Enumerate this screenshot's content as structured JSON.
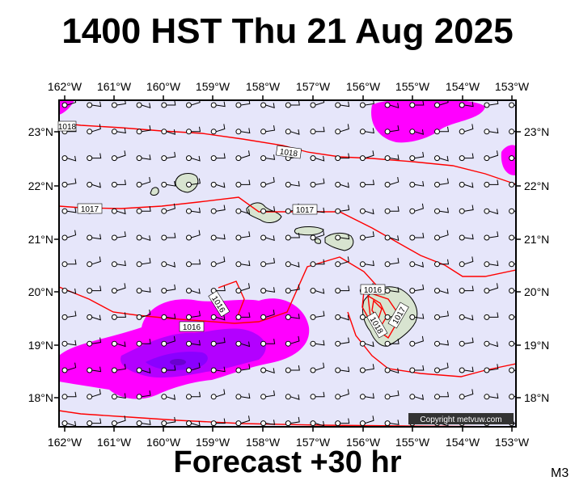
{
  "header": {
    "title": "1400 HST Thu 21 Aug 2025"
  },
  "footer": {
    "forecast": "Forecast +30 hr",
    "model": "M3"
  },
  "map": {
    "copyright": "Copyright metvuw.com",
    "lon_labels": [
      "162°W",
      "161°W",
      "160°W",
      "159°W",
      "158°W",
      "157°W",
      "156°W",
      "155°W",
      "154°W",
      "153°W"
    ],
    "lat_labels": [
      "23°N",
      "22°N",
      "21°N",
      "20°N",
      "19°N",
      "18°N"
    ],
    "isobar_labels": [
      {
        "text": "1018"
      },
      {
        "text": "1018"
      },
      {
        "text": "1017"
      },
      {
        "text": "1017"
      },
      {
        "text": "1016"
      },
      {
        "text": "1016"
      },
      {
        "text": "1016"
      },
      {
        "text": "1018"
      },
      {
        "text": "1017"
      }
    ],
    "colors": {
      "ocean": "#e6e6fa",
      "isobar": "#ff0000",
      "rain_light": "#ff00ff",
      "rain_heavy": "#a100ff",
      "land": "#d8e4d0"
    }
  }
}
